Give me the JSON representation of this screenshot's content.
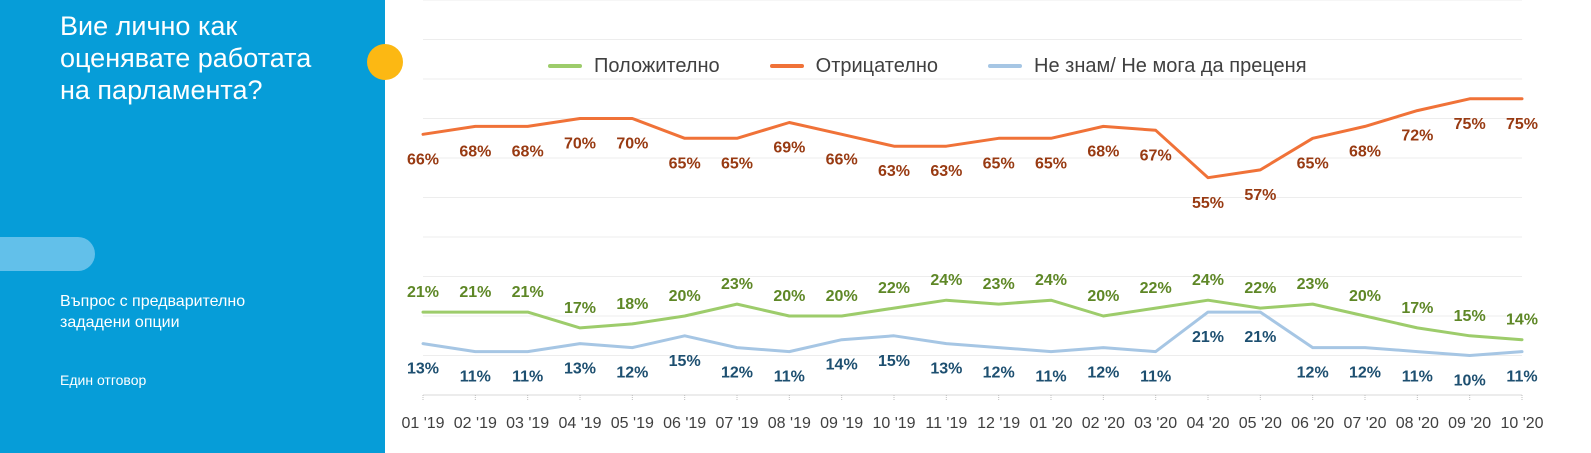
{
  "sidebar": {
    "title_lines": [
      "Вие лично как",
      "оценявате работата",
      "на парламента?"
    ],
    "question_type_lines": [
      "Въпрос с предварително",
      "зададени опции"
    ],
    "answer_type": "Един отговор"
  },
  "chart_data": {
    "type": "line",
    "title": "",
    "xlabel": "",
    "ylabel": "",
    "ylim": [
      0,
      100
    ],
    "grid": true,
    "legend": "top",
    "x": [
      "01 '19",
      "02 '19",
      "03 '19",
      "04 '19",
      "05 '19",
      "06 '19",
      "07 '19",
      "08 '19",
      "09 '19",
      "10 '19",
      "11 '19",
      "12 '19",
      "01 '20",
      "02 '20",
      "03 '20",
      "04 '20",
      "05 '20",
      "06 '20",
      "07 '20",
      "08 '20",
      "09 '20",
      "10 '20"
    ],
    "series": [
      {
        "name": "Положително",
        "color": "#9dcc6b",
        "label_color": "#5e8726",
        "label_pos": "above",
        "values": [
          21,
          21,
          21,
          17,
          18,
          20,
          23,
          20,
          20,
          22,
          24,
          23,
          24,
          20,
          22,
          24,
          22,
          23,
          20,
          17,
          15,
          14
        ]
      },
      {
        "name": "Отрицателно",
        "color": "#f07238",
        "label_color": "#983a12",
        "label_pos": "below",
        "values": [
          66,
          68,
          68,
          70,
          70,
          65,
          65,
          69,
          66,
          63,
          63,
          65,
          65,
          68,
          67,
          55,
          57,
          65,
          68,
          72,
          75,
          75
        ]
      },
      {
        "name": "Не знам/ Не мога да преценя",
        "color": "#a6c6e4",
        "label_color": "#1d4f70",
        "label_pos": "below",
        "values": [
          13,
          11,
          11,
          13,
          12,
          15,
          12,
          11,
          14,
          15,
          13,
          12,
          11,
          12,
          11,
          21,
          21,
          12,
          12,
          11,
          10,
          11
        ]
      }
    ]
  }
}
